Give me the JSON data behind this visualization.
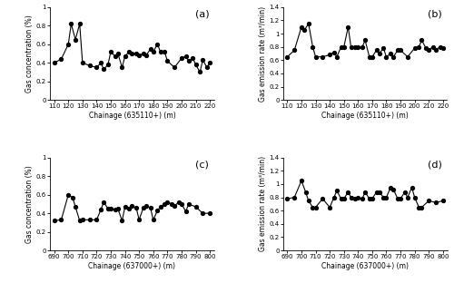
{
  "panel_a": {
    "label": "(a)",
    "x": [
      110,
      115,
      120,
      122,
      125,
      128,
      130,
      135,
      140,
      143,
      145,
      148,
      150,
      153,
      155,
      158,
      160,
      163,
      165,
      168,
      170,
      173,
      175,
      178,
      180,
      183,
      185,
      188,
      190,
      195,
      200,
      203,
      205,
      208,
      210,
      213,
      215,
      218,
      220
    ],
    "y": [
      0.4,
      0.44,
      0.6,
      0.82,
      0.65,
      0.82,
      0.4,
      0.37,
      0.35,
      0.4,
      0.33,
      0.38,
      0.52,
      0.47,
      0.5,
      0.35,
      0.47,
      0.52,
      0.5,
      0.5,
      0.48,
      0.5,
      0.48,
      0.55,
      0.52,
      0.6,
      0.52,
      0.52,
      0.42,
      0.35,
      0.45,
      0.47,
      0.42,
      0.45,
      0.38,
      0.3,
      0.43,
      0.35,
      0.4
    ],
    "xlabel": "Chainage (635110+) (m)",
    "ylabel": "Gas concentration (%)",
    "xlim": [
      107,
      223
    ],
    "ylim": [
      0.0,
      1.0
    ],
    "xticks": [
      110,
      120,
      130,
      140,
      150,
      160,
      170,
      180,
      190,
      200,
      210,
      220
    ],
    "yticks": [
      0.0,
      0.2,
      0.4,
      0.6,
      0.8,
      1.0
    ]
  },
  "panel_b": {
    "label": "(b)",
    "x": [
      110,
      115,
      120,
      122,
      125,
      128,
      130,
      135,
      140,
      143,
      145,
      148,
      150,
      153,
      155,
      158,
      160,
      163,
      165,
      168,
      170,
      173,
      175,
      178,
      180,
      183,
      185,
      188,
      190,
      195,
      200,
      203,
      205,
      208,
      210,
      213,
      215,
      218,
      220
    ],
    "y": [
      0.65,
      0.75,
      1.1,
      1.05,
      1.15,
      0.8,
      0.65,
      0.65,
      0.68,
      0.72,
      0.65,
      0.8,
      0.8,
      1.1,
      0.8,
      0.8,
      0.8,
      0.8,
      0.9,
      0.65,
      0.65,
      0.75,
      0.7,
      0.78,
      0.65,
      0.7,
      0.65,
      0.75,
      0.75,
      0.65,
      0.78,
      0.8,
      0.9,
      0.78,
      0.76,
      0.8,
      0.76,
      0.8,
      0.78
    ],
    "xlabel": "Chainage (635110+) (m)",
    "ylabel": "Gas emission rate (m³/min)",
    "xlim": [
      107,
      223
    ],
    "ylim": [
      0,
      1.4
    ],
    "xticks": [
      110,
      120,
      130,
      140,
      150,
      160,
      170,
      180,
      190,
      200,
      210,
      220
    ],
    "yticks": [
      0,
      0.2,
      0.4,
      0.6,
      0.8,
      1.0,
      1.2,
      1.4
    ]
  },
  "panel_c": {
    "label": "(c)",
    "x": [
      690,
      695,
      700,
      703,
      705,
      708,
      710,
      715,
      720,
      723,
      725,
      728,
      730,
      733,
      735,
      738,
      740,
      743,
      745,
      748,
      750,
      753,
      755,
      758,
      760,
      763,
      765,
      768,
      770,
      773,
      775,
      778,
      780,
      783,
      785,
      790,
      795,
      800
    ],
    "y": [
      0.32,
      0.33,
      0.6,
      0.57,
      0.47,
      0.32,
      0.33,
      0.33,
      0.33,
      0.44,
      0.52,
      0.45,
      0.45,
      0.44,
      0.45,
      0.32,
      0.47,
      0.45,
      0.48,
      0.46,
      0.33,
      0.46,
      0.48,
      0.46,
      0.33,
      0.43,
      0.47,
      0.5,
      0.52,
      0.5,
      0.48,
      0.52,
      0.5,
      0.42,
      0.5,
      0.47,
      0.4,
      0.4
    ],
    "xlabel": "Chainage (637000+) (m)",
    "ylabel": "Gas concentration (%)",
    "xlim": [
      687,
      803
    ],
    "ylim": [
      0.0,
      1.0
    ],
    "xticks": [
      690,
      700,
      710,
      720,
      730,
      740,
      750,
      760,
      770,
      780,
      790,
      800
    ],
    "yticks": [
      0.0,
      0.2,
      0.4,
      0.6,
      0.8,
      1.0
    ]
  },
  "panel_d": {
    "label": "(d)",
    "x": [
      690,
      695,
      700,
      703,
      705,
      708,
      710,
      715,
      720,
      723,
      725,
      728,
      730,
      733,
      735,
      738,
      740,
      743,
      745,
      748,
      750,
      753,
      755,
      758,
      760,
      763,
      765,
      768,
      770,
      773,
      775,
      778,
      780,
      783,
      785,
      790,
      795,
      800
    ],
    "y": [
      0.78,
      0.8,
      1.05,
      0.88,
      0.75,
      0.65,
      0.65,
      0.78,
      0.65,
      0.8,
      0.9,
      0.78,
      0.78,
      0.88,
      0.8,
      0.78,
      0.8,
      0.78,
      0.88,
      0.78,
      0.78,
      0.88,
      0.88,
      0.8,
      0.8,
      0.95,
      0.92,
      0.78,
      0.78,
      0.88,
      0.8,
      0.95,
      0.8,
      0.65,
      0.65,
      0.75,
      0.72,
      0.75
    ],
    "xlabel": "Chainage (637000+) (m)",
    "ylabel": "Gas emission rate (m³/min)",
    "xlim": [
      687,
      803
    ],
    "ylim": [
      0,
      1.4
    ],
    "xticks": [
      690,
      700,
      710,
      720,
      730,
      740,
      750,
      760,
      770,
      780,
      790,
      800
    ],
    "yticks": [
      0,
      0.2,
      0.4,
      0.6,
      0.8,
      1.0,
      1.2,
      1.4
    ]
  },
  "line_color": "#000000",
  "marker": "o",
  "markersize": 2.8,
  "linewidth": 0.8,
  "label_fontsize": 5.5,
  "tick_fontsize": 5.0,
  "panel_label_fontsize": 8.0,
  "background_color": "#ffffff"
}
